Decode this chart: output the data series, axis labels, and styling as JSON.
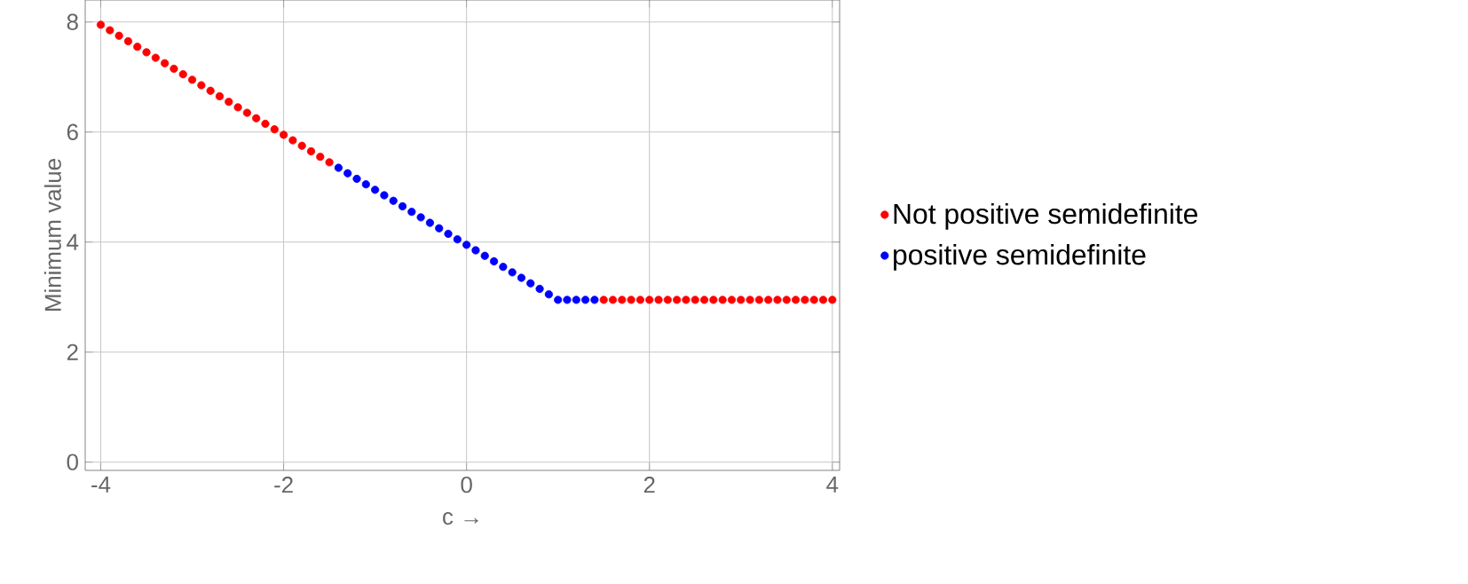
{
  "chart_data": {
    "type": "scatter",
    "xlabel": "c →",
    "ylabel": "Minimum value",
    "xlim": [
      -4.17,
      4.08
    ],
    "ylim": [
      -0.15,
      8.4
    ],
    "xticks": [
      -4,
      -2,
      0,
      2,
      4
    ],
    "yticks": [
      0,
      2,
      4,
      6,
      8
    ],
    "grid": true,
    "legend": "right",
    "marker": "circle",
    "series": [
      {
        "name": "Not positive semidefinite",
        "color": "#ff0000",
        "x": [
          -4.0,
          -3.9,
          -3.8,
          -3.7,
          -3.6,
          -3.5,
          -3.4,
          -3.3,
          -3.2,
          -3.1,
          -3.0,
          -2.9,
          -2.8,
          -2.7,
          -2.6,
          -2.5,
          -2.4,
          -2.3,
          -2.2,
          -2.1,
          -2.0,
          -1.9,
          -1.8,
          -1.7,
          -1.6,
          -1.5,
          1.5,
          1.6,
          1.7,
          1.8,
          1.9,
          2.0,
          2.1,
          2.2,
          2.3,
          2.4,
          2.5,
          2.6,
          2.7,
          2.8,
          2.9,
          3.0,
          3.1,
          3.2,
          3.3,
          3.4,
          3.5,
          3.6,
          3.7,
          3.8,
          3.9,
          4.0
        ],
        "values": [
          7.95,
          7.85,
          7.75,
          7.65,
          7.55,
          7.45,
          7.35,
          7.25,
          7.15,
          7.05,
          6.95,
          6.85,
          6.75,
          6.65,
          6.55,
          6.45,
          6.35,
          6.25,
          6.15,
          6.05,
          5.95,
          5.85,
          5.75,
          5.65,
          5.55,
          5.45,
          2.95,
          2.95,
          2.95,
          2.95,
          2.95,
          2.95,
          2.95,
          2.95,
          2.95,
          2.95,
          2.95,
          2.95,
          2.95,
          2.95,
          2.95,
          2.95,
          2.95,
          2.95,
          2.95,
          2.95,
          2.95,
          2.95,
          2.95,
          2.95,
          2.95,
          2.95
        ]
      },
      {
        "name": "positive semidefinite",
        "color": "#0000ff",
        "x": [
          -1.4,
          -1.3,
          -1.2,
          -1.1,
          -1.0,
          -0.9,
          -0.8,
          -0.7,
          -0.6,
          -0.5,
          -0.4,
          -0.3,
          -0.2,
          -0.1,
          0.0,
          0.1,
          0.2,
          0.3,
          0.4,
          0.5,
          0.6,
          0.7,
          0.8,
          0.9,
          1.0,
          1.1,
          1.2,
          1.3,
          1.4
        ],
        "values": [
          5.35,
          5.25,
          5.15,
          5.05,
          4.95,
          4.85,
          4.75,
          4.65,
          4.55,
          4.45,
          4.35,
          4.25,
          4.15,
          4.05,
          3.95,
          3.85,
          3.75,
          3.65,
          3.55,
          3.45,
          3.35,
          3.25,
          3.15,
          3.05,
          2.95,
          2.95,
          2.95,
          2.95,
          2.95
        ]
      }
    ]
  }
}
